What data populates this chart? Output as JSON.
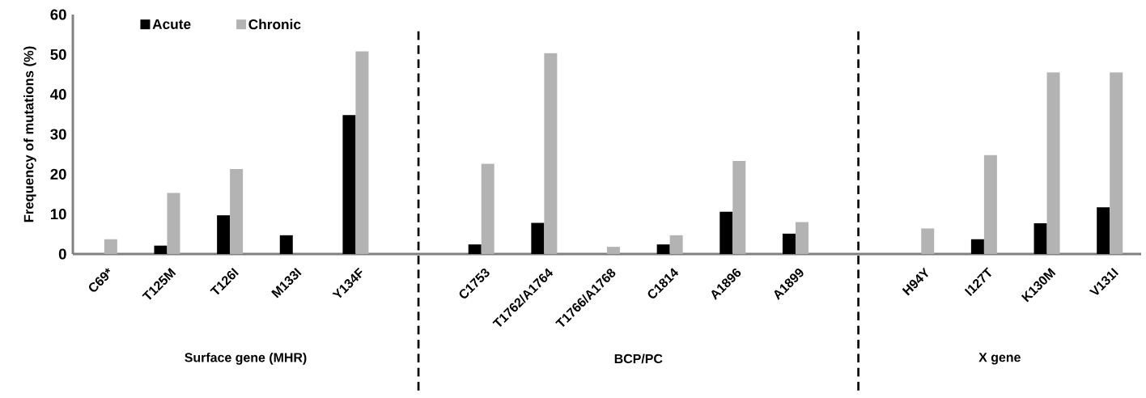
{
  "chart_data": {
    "type": "bar",
    "ylabel": "Frequency of mutations (%)",
    "categories": [
      "C69*",
      "T125M",
      "T126I",
      "M133I",
      "Y134F",
      null,
      "C1753",
      "T1762/A1764",
      "T1766/A1768",
      "C1814",
      "A1896",
      "A1899",
      null,
      "H94Y",
      "I127T",
      "K130M",
      "V131I"
    ],
    "series": [
      {
        "name": "Acute",
        "color": "#000000",
        "values": [
          0,
          2.1,
          9.7,
          4.7,
          34.8,
          null,
          2.4,
          7.8,
          0,
          2.4,
          10.6,
          5.1,
          null,
          0,
          3.7,
          7.7,
          11.7
        ]
      },
      {
        "name": "Chronic",
        "color": "#b3b3b3",
        "values": [
          3.7,
          15.3,
          21.3,
          0,
          50.8,
          null,
          22.6,
          50.3,
          1.8,
          4.7,
          23.3,
          8.0,
          null,
          6.4,
          24.8,
          45.5,
          45.5
        ]
      }
    ],
    "ylim": [
      0,
      60
    ],
    "yticks": [
      0,
      10,
      20,
      30,
      40,
      50,
      60
    ],
    "annotations": [
      "Surface gene  (MHR)",
      "BCP/PC",
      "X gene"
    ],
    "legend": "top left",
    "grid": false
  }
}
